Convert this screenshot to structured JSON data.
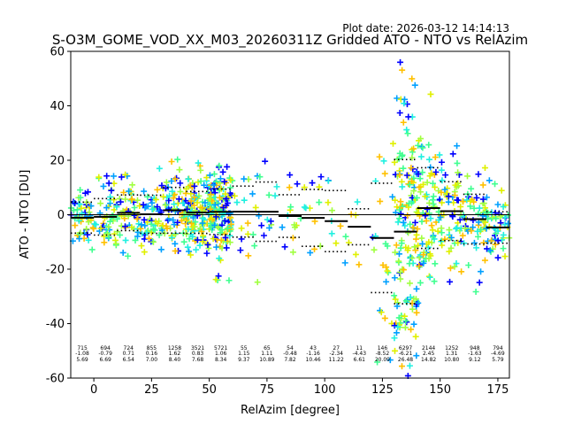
{
  "chart_data": {
    "type": "scatter",
    "title": "S-O3M_GOME_VOD_XX_M03_20260311Z Gridded ATO - NTO vs RelAzim",
    "plot_date": "Plot date: 2026-03-12 14:14:13",
    "xlabel": "RelAzim [degree]",
    "ylabel": "ATO - NTO [DU]",
    "xlim": [
      -10,
      180
    ],
    "ylim": [
      -60,
      60
    ],
    "xticks": [
      "0",
      "25",
      "50",
      "75",
      "100",
      "125",
      "150",
      "175"
    ],
    "xtick_values": [
      0,
      25,
      50,
      75,
      100,
      125,
      150,
      175
    ],
    "yticks": [
      "-60",
      "-40",
      "-20",
      "0",
      "20",
      "40",
      "60"
    ],
    "ytick_values": [
      -60,
      -40,
      -20,
      0,
      20,
      40,
      60
    ],
    "marker": "plus",
    "color_scale": [
      "#0000ff",
      "#00a0ff",
      "#20f0e0",
      "#40ff90",
      "#a0ff40",
      "#e0f000",
      "#ffc000"
    ],
    "bin_stats": [
      {
        "x": -5,
        "count": "715",
        "mean": "-1.08",
        "std": "5.69"
      },
      {
        "x": 5,
        "count": "694",
        "mean": "-0.79",
        "std": "6.69"
      },
      {
        "x": 15,
        "count": "724",
        "mean": "0.71",
        "std": "6.54"
      },
      {
        "x": 25,
        "count": "855",
        "mean": "0.16",
        "std": "7.00"
      },
      {
        "x": 35,
        "count": "1258",
        "mean": "1.62",
        "std": "8.40"
      },
      {
        "x": 45,
        "count": "3521",
        "mean": "0.83",
        "std": "7.68"
      },
      {
        "x": 55,
        "count": "5721",
        "mean": "1.06",
        "std": "8.34"
      },
      {
        "x": 65,
        "count": "55",
        "mean": "1.15",
        "std": "9.37"
      },
      {
        "x": 75,
        "count": "65",
        "mean": "1.11",
        "std": "10.89"
      },
      {
        "x": 85,
        "count": "54",
        "mean": "-0.48",
        "std": "7.82"
      },
      {
        "x": 95,
        "count": "43",
        "mean": "-1.16",
        "std": "10.46"
      },
      {
        "x": 105,
        "count": "27",
        "mean": "-2.34",
        "std": "11.22"
      },
      {
        "x": 115,
        "count": "11",
        "mean": "-4.43",
        "std": "6.61"
      },
      {
        "x": 125,
        "count": "146",
        "mean": "-8.52",
        "std": "20.09"
      },
      {
        "x": 135,
        "count": "6297",
        "mean": "-6.21",
        "std": "26.48"
      },
      {
        "x": 145,
        "count": "2144",
        "mean": "2.45",
        "std": "14.82"
      },
      {
        "x": 155,
        "count": "1252",
        "mean": "1.31",
        "std": "10.80"
      },
      {
        "x": 165,
        "count": "948",
        "mean": "-1.63",
        "std": "9.12"
      },
      {
        "x": 175,
        "count": "794",
        "mean": "-4.69",
        "std": "5.79"
      }
    ]
  }
}
